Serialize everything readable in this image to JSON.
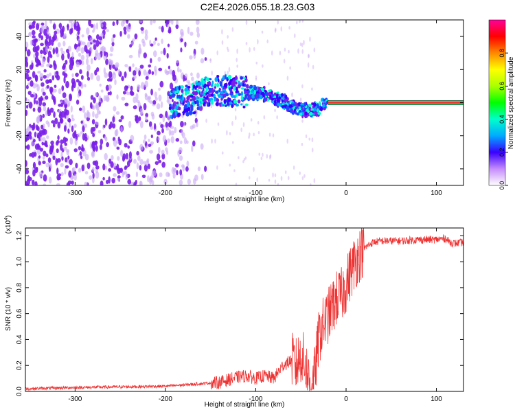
{
  "title": "C2E4.2026.055.18.23.G03",
  "colors": {
    "snr_line": "#ee3333",
    "spectral_scatter": "#7a1fe8",
    "spectral_faint": "#c9a8f5",
    "frame": "#000000"
  },
  "chart_data": [
    {
      "type": "heatmap",
      "name": "spectrogram",
      "xlabel": "Height of straight line (km)",
      "ylabel": "Frequency (Hz)",
      "xlim": [
        -355,
        130
      ],
      "ylim": [
        -50,
        50
      ],
      "xticks": [
        -300,
        -200,
        -100,
        0,
        100
      ],
      "yticks": [
        -40,
        -20,
        0,
        20,
        40
      ],
      "colorbar": {
        "label": "Normalized spectral amplitude",
        "range": [
          0,
          1
        ],
        "ticks": [
          0.0,
          0.2,
          0.4,
          0.6,
          0.8
        ]
      },
      "noise_region_x": [
        -355,
        -155
      ],
      "signal_track": {
        "x": [
          -195,
          -170,
          -150,
          -130,
          -110,
          -100,
          -90,
          -80,
          -70,
          -60,
          -50,
          -40,
          -30,
          -20,
          -10,
          0,
          20,
          60,
          100,
          130
        ],
        "y": [
          0,
          2,
          8,
          7,
          6,
          6,
          5,
          3,
          1,
          -2,
          -4,
          -5,
          -3,
          0,
          0,
          0,
          0,
          0,
          0,
          0
        ]
      }
    },
    {
      "type": "line",
      "name": "snr",
      "xlabel": "Height of straight line (km)",
      "ylabel": "SNR (10 * v/v)",
      "multiplier_label": "(x10",
      "multiplier_exp": "4",
      "xlim": [
        -355,
        130
      ],
      "ylim": [
        0,
        1.26
      ],
      "xticks": [
        -300,
        -200,
        -100,
        0,
        100
      ],
      "yticks": [
        0.0,
        0.2,
        0.4,
        0.6,
        0.8,
        1.0,
        1.2
      ],
      "series": [
        {
          "name": "SNR",
          "x": [
            -355,
            -300,
            -250,
            -200,
            -180,
            -160,
            -140,
            -130,
            -120,
            -110,
            -100,
            -90,
            -80,
            -70,
            -60,
            -55,
            -50,
            -45,
            -40,
            -38,
            -35,
            -30,
            -25,
            -20,
            -15,
            -10,
            -5,
            0,
            5,
            10,
            15,
            20,
            25,
            30,
            40,
            60,
            80,
            100,
            110,
            115,
            120,
            130
          ],
          "y": [
            0.02,
            0.03,
            0.035,
            0.04,
            0.05,
            0.06,
            0.07,
            0.09,
            0.11,
            0.12,
            0.1,
            0.12,
            0.1,
            0.2,
            0.24,
            0.2,
            0.28,
            0.2,
            0.06,
            0.01,
            0.12,
            0.42,
            0.52,
            0.58,
            0.65,
            0.72,
            0.74,
            0.82,
            0.92,
            1.0,
            1.06,
            1.1,
            1.13,
            1.15,
            1.16,
            1.16,
            1.17,
            1.17,
            1.18,
            1.15,
            1.14,
            1.15
          ]
        }
      ]
    }
  ]
}
